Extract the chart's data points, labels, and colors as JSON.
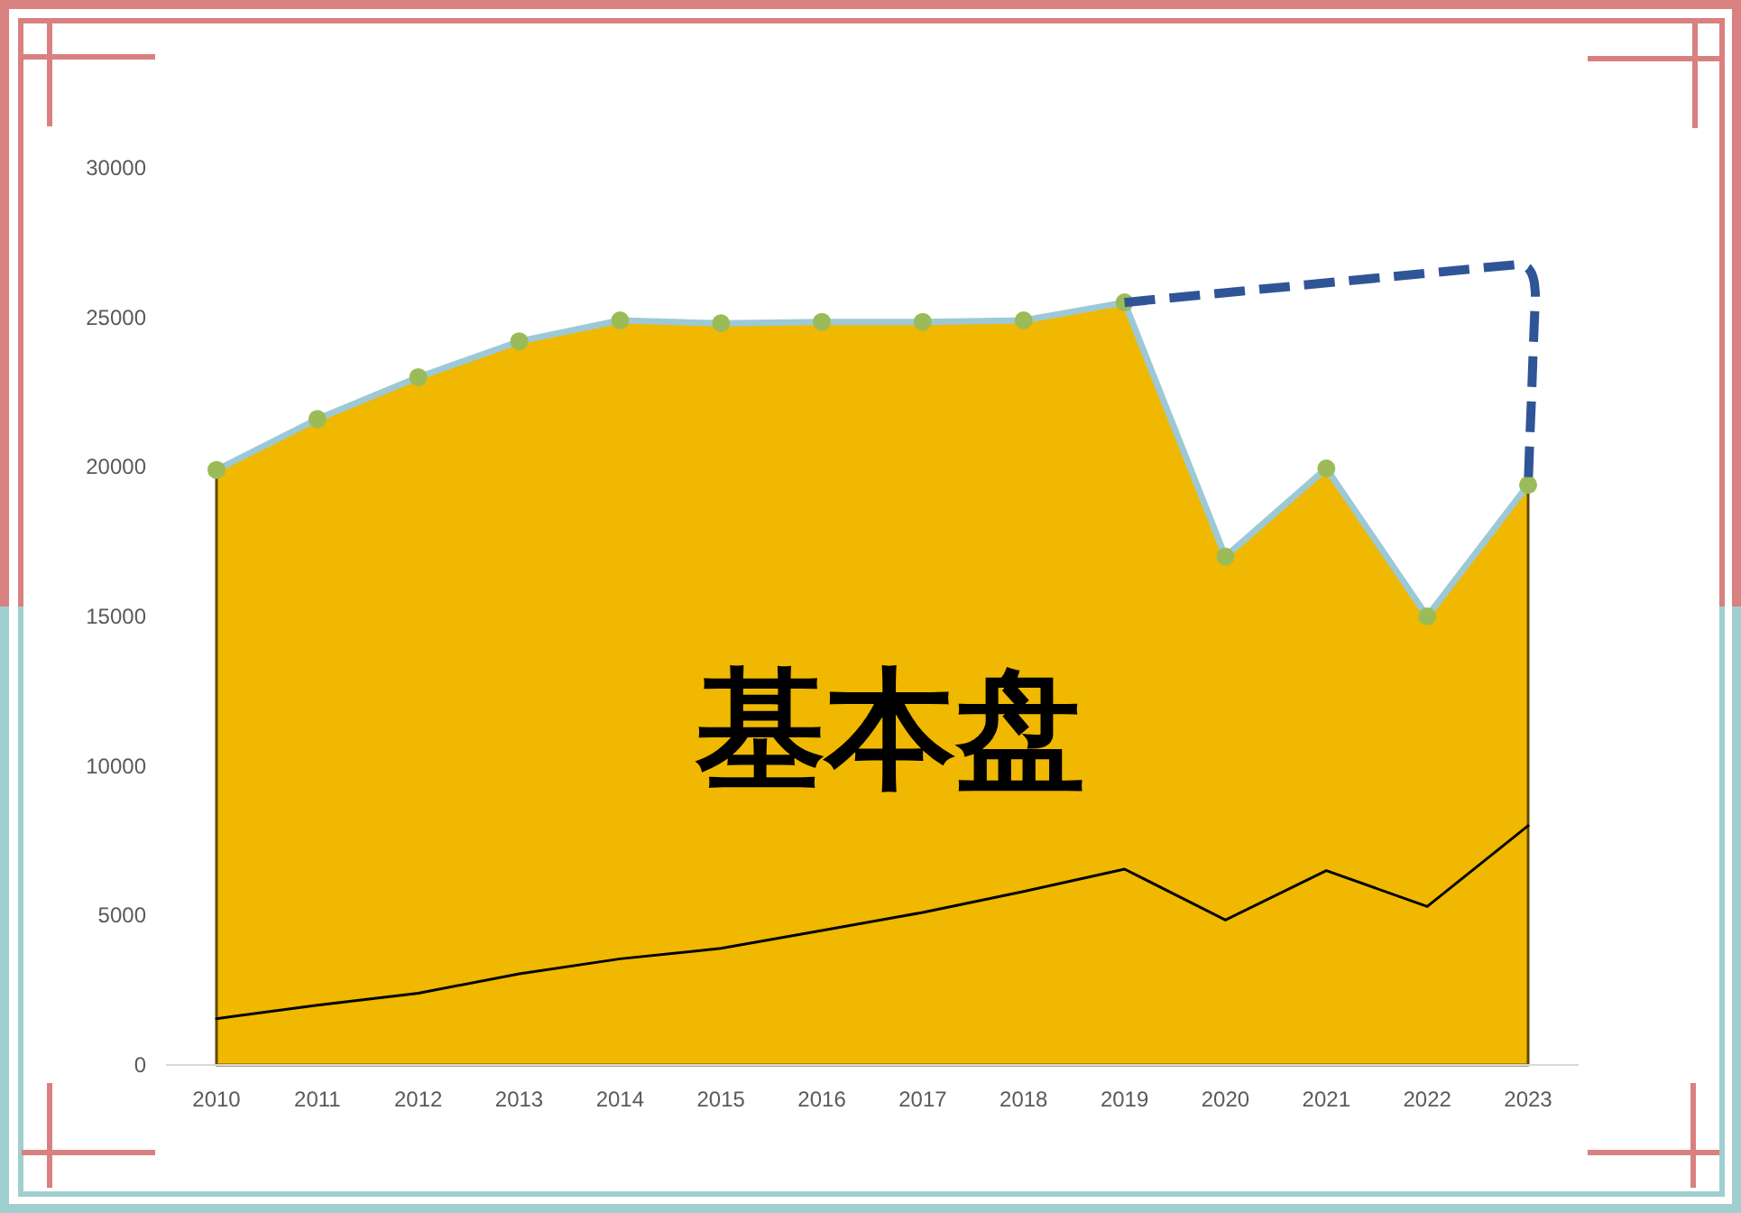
{
  "chart_data": {
    "type": "area",
    "categories": [
      "2010",
      "2011",
      "2012",
      "2013",
      "2014",
      "2015",
      "2016",
      "2017",
      "2018",
      "2019",
      "2020",
      "2021",
      "2022",
      "2023"
    ],
    "series": [
      {
        "color": "#f0b800",
        "values": [
          19900,
          21600,
          23000,
          24200,
          24900,
          24800,
          24850,
          24850,
          24900,
          25500,
          17000,
          19950,
          15000,
          19400
        ]
      },
      {
        "type": "line",
        "color": "#9dc9d6",
        "marker": "circle",
        "colors": [
          "#9bbb59",
          "#9bbb59",
          "#9bbb59",
          "#9bbb59",
          "#9bbb59",
          "#9bbb59",
          "#9bbb59",
          "#9bbb59",
          "#9bbb59",
          "#9bbb59",
          "#9bbb59",
          "#9bbb59",
          "#9bbb59",
          "#9bbb59"
        ],
        "values": [
          19900,
          21600,
          23000,
          24200,
          24900,
          24800,
          24850,
          24850,
          24900,
          25500,
          17000,
          19950,
          15000,
          19400
        ]
      },
      {
        "type": "line",
        "color": "#000000",
        "values": [
          1550,
          2000,
          2400,
          3050,
          3550,
          3900,
          4500,
          5100,
          5800,
          6550,
          4850,
          6500,
          5300,
          8000
        ]
      }
    ],
    "ylim": [
      0,
      30000
    ],
    "yticks": [
      0,
      5000,
      10000,
      15000,
      20000,
      25000,
      30000
    ],
    "annotations": [
      "基本盘"
    ]
  }
}
